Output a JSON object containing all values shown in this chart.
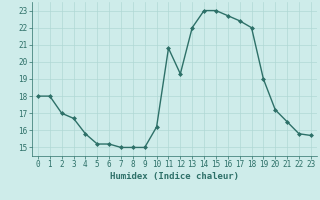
{
  "x": [
    0,
    1,
    2,
    3,
    4,
    5,
    6,
    7,
    8,
    9,
    10,
    11,
    12,
    13,
    14,
    15,
    16,
    17,
    18,
    19,
    20,
    21,
    22,
    23
  ],
  "y": [
    18,
    18,
    17,
    16.7,
    15.8,
    15.2,
    15.2,
    15.0,
    15.0,
    15.0,
    16.2,
    20.8,
    19.3,
    22.0,
    23.0,
    23.0,
    22.7,
    22.4,
    22.0,
    19.0,
    17.2,
    16.5,
    15.8,
    15.7
  ],
  "line_color": "#2d7068",
  "marker": "D",
  "marker_size": 2.0,
  "bg_color": "#ceecea",
  "grid_color": "#b0d8d5",
  "xlabel": "Humidex (Indice chaleur)",
  "xlim": [
    -0.5,
    23.5
  ],
  "ylim": [
    14.5,
    23.5
  ],
  "yticks": [
    15,
    16,
    17,
    18,
    19,
    20,
    21,
    22,
    23
  ],
  "xticks": [
    0,
    1,
    2,
    3,
    4,
    5,
    6,
    7,
    8,
    9,
    10,
    11,
    12,
    13,
    14,
    15,
    16,
    17,
    18,
    19,
    20,
    21,
    22,
    23
  ],
  "tick_color": "#2d7068",
  "label_fontsize": 6.5,
  "tick_fontsize": 5.5,
  "linewidth": 1.0
}
